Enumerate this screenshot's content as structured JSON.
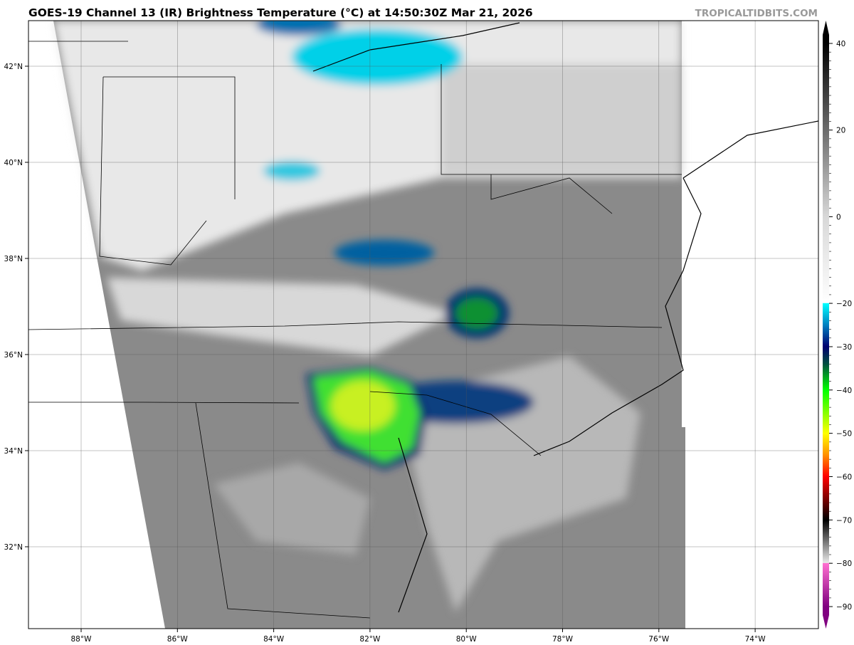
{
  "title": "GOES-19 Channel 13 (IR) Brightness Temperature (°C) at 14:50:30Z Mar 21, 2026",
  "watermark": "TROPICALTIDBITS.COM",
  "map": {
    "lon_ticks": [
      "88°W",
      "86°W",
      "84°W",
      "82°W",
      "80°W",
      "78°W",
      "76°W",
      "74°W"
    ],
    "lat_ticks": [
      "42°N",
      "40°N",
      "38°N",
      "36°N",
      "34°N",
      "32°N"
    ],
    "extent": {
      "lon": [
        -89.1,
        -72.7
      ],
      "lat": [
        30.3,
        42.9
      ]
    }
  },
  "colorbar": {
    "ticks": [
      "40",
      "20",
      "0",
      "−20",
      "−30",
      "−40",
      "−50",
      "−60",
      "−70",
      "−80",
      "−90"
    ],
    "tick_values": [
      40,
      20,
      0,
      -20,
      -30,
      -40,
      -50,
      -60,
      -70,
      -80,
      -90
    ],
    "range": [
      -90,
      40
    ],
    "stops": [
      {
        "v": 40,
        "c": "#000000"
      },
      {
        "v": 0,
        "c": "#d8d8d8"
      },
      {
        "v": -19.9,
        "c": "#ffffff"
      },
      {
        "v": -20,
        "c": "#00ffff"
      },
      {
        "v": -25,
        "c": "#0080c0"
      },
      {
        "v": -30,
        "c": "#000070"
      },
      {
        "v": -34,
        "c": "#005040"
      },
      {
        "v": -40,
        "c": "#00ff00"
      },
      {
        "v": -50,
        "c": "#ffff00"
      },
      {
        "v": -55,
        "c": "#ff9000"
      },
      {
        "v": -60,
        "c": "#ff0000"
      },
      {
        "v": -70,
        "c": "#000000"
      },
      {
        "v": -79.9,
        "c": "#e8e8e8"
      },
      {
        "v": -80,
        "c": "#ff70d0"
      },
      {
        "v": -90,
        "c": "#800080"
      }
    ]
  }
}
